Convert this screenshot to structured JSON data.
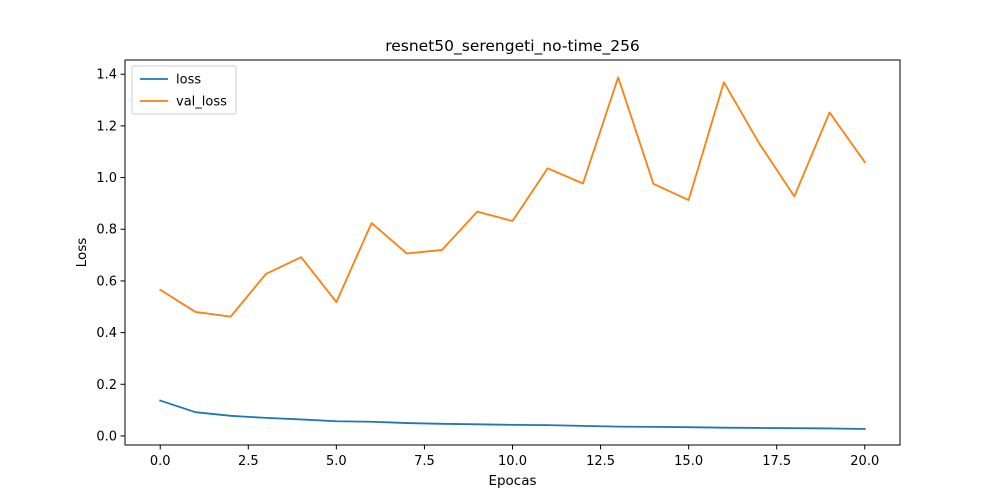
{
  "chart_data": {
    "type": "line",
    "title": "resnet50_serengeti_no-time_256",
    "xlabel": "Epocas",
    "ylabel": "Loss",
    "x": [
      0,
      1,
      2,
      3,
      4,
      5,
      6,
      7,
      8,
      9,
      10,
      11,
      12,
      13,
      14,
      15,
      16,
      17,
      18,
      19,
      20
    ],
    "xlim": [
      -1.0,
      21.0
    ],
    "ylim": [
      -0.035,
      1.455
    ],
    "xticks": [
      0.0,
      2.5,
      5.0,
      7.5,
      10.0,
      12.5,
      15.0,
      17.5,
      20.0
    ],
    "xtick_labels": [
      "0.0",
      "2.5",
      "5.0",
      "7.5",
      "10.0",
      "12.5",
      "15.0",
      "17.5",
      "20.0"
    ],
    "yticks": [
      0.0,
      0.2,
      0.4,
      0.6,
      0.8,
      1.0,
      1.2,
      1.4
    ],
    "ytick_labels": [
      "0.0",
      "0.2",
      "0.4",
      "0.6",
      "0.8",
      "1.0",
      "1.2",
      "1.4"
    ],
    "grid": false,
    "legend_position": "upper-left",
    "series": [
      {
        "name": "loss",
        "color": "#1f77b4",
        "values": [
          0.137,
          0.092,
          0.078,
          0.07,
          0.064,
          0.057,
          0.055,
          0.05,
          0.047,
          0.045,
          0.043,
          0.042,
          0.039,
          0.036,
          0.035,
          0.034,
          0.032,
          0.031,
          0.03,
          0.029,
          0.027
        ]
      },
      {
        "name": "val_loss",
        "color": "#ff7f0e",
        "values": [
          0.566,
          0.48,
          0.462,
          0.627,
          0.692,
          0.518,
          0.824,
          0.706,
          0.72,
          0.868,
          0.832,
          1.036,
          0.977,
          1.388,
          0.976,
          0.913,
          1.369,
          1.133,
          0.927,
          1.252,
          1.06
        ]
      }
    ]
  }
}
